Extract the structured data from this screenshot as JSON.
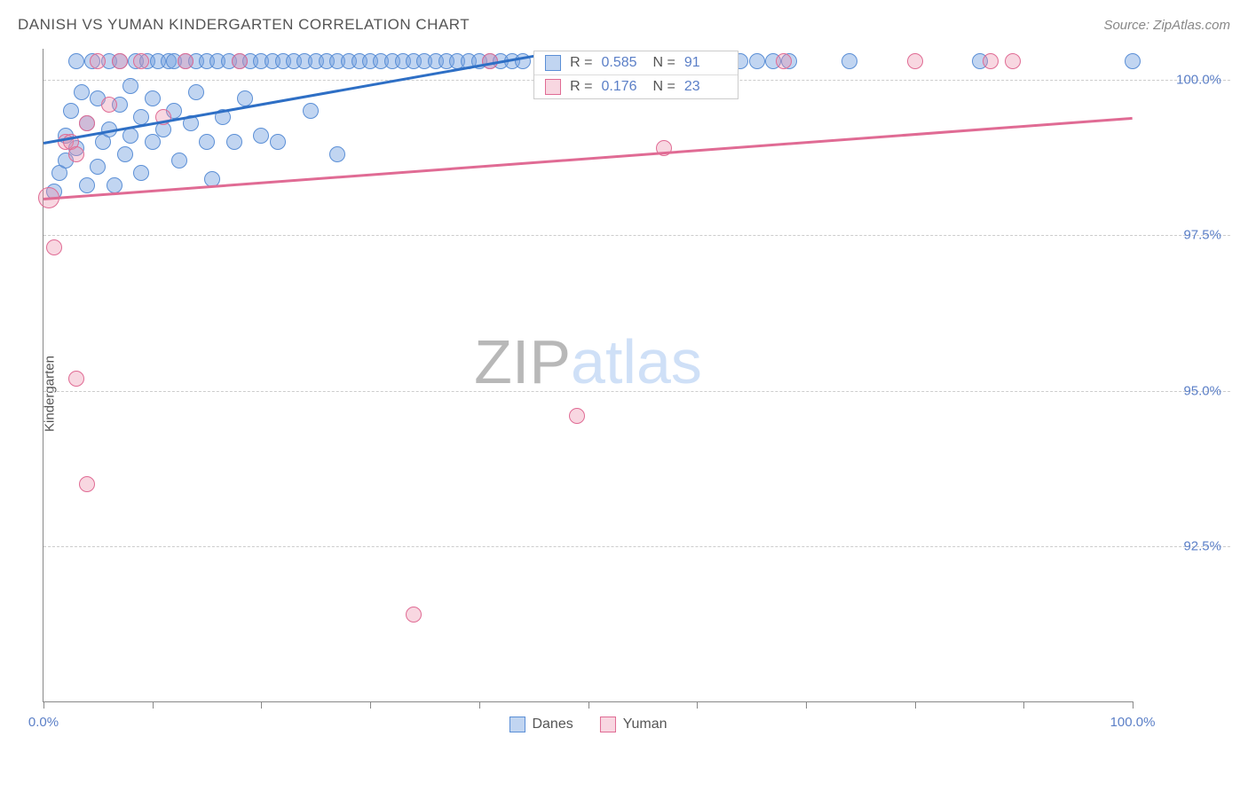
{
  "header": {
    "title": "DANISH VS YUMAN KINDERGARTEN CORRELATION CHART",
    "source": "Source: ZipAtlas.com"
  },
  "chart": {
    "type": "scatter",
    "y_axis_label": "Kindergarten",
    "background_color": "#ffffff",
    "grid_color": "#cccccc",
    "axis_color": "#888888",
    "tick_label_color": "#5b7fc7",
    "xlim": [
      0,
      100
    ],
    "ylim": [
      90,
      100.5
    ],
    "x_ticks": [
      0,
      10,
      20,
      30,
      40,
      50,
      60,
      70,
      80,
      90,
      100
    ],
    "x_tick_labels": {
      "0": "0.0%",
      "100": "100.0%"
    },
    "y_grid": [
      {
        "value": 92.5,
        "label": "92.5%"
      },
      {
        "value": 95.0,
        "label": "95.0%"
      },
      {
        "value": 97.5,
        "label": "97.5%"
      },
      {
        "value": 100.0,
        "label": "100.0%"
      }
    ],
    "series": [
      {
        "name": "Danes",
        "fill_color": "rgba(118,161,224,0.45)",
        "stroke_color": "#5b8fd6",
        "line_color": "#2e6fc5",
        "marker_size": 18,
        "R": "0.585",
        "N": "91",
        "trend": {
          "x1": 0,
          "y1": 99.0,
          "x2": 45,
          "y2": 100.4
        },
        "points": [
          {
            "x": 1,
            "y": 98.2
          },
          {
            "x": 1.5,
            "y": 98.5
          },
          {
            "x": 2,
            "y": 99.1
          },
          {
            "x": 2,
            "y": 98.7
          },
          {
            "x": 2.5,
            "y": 99.5
          },
          {
            "x": 3,
            "y": 98.9
          },
          {
            "x": 3,
            "y": 100.3
          },
          {
            "x": 3.5,
            "y": 99.8
          },
          {
            "x": 4,
            "y": 99.3
          },
          {
            "x": 4,
            "y": 98.3
          },
          {
            "x": 4.5,
            "y": 100.3
          },
          {
            "x": 5,
            "y": 99.7
          },
          {
            "x": 5,
            "y": 98.6
          },
          {
            "x": 5.5,
            "y": 99.0
          },
          {
            "x": 6,
            "y": 100.3
          },
          {
            "x": 6,
            "y": 99.2
          },
          {
            "x": 6.5,
            "y": 98.3
          },
          {
            "x": 7,
            "y": 99.6
          },
          {
            "x": 7,
            "y": 100.3
          },
          {
            "x": 7.5,
            "y": 98.8
          },
          {
            "x": 8,
            "y": 99.9
          },
          {
            "x": 8,
            "y": 99.1
          },
          {
            "x": 8.5,
            "y": 100.3
          },
          {
            "x": 9,
            "y": 98.5
          },
          {
            "x": 9,
            "y": 99.4
          },
          {
            "x": 9.5,
            "y": 100.3
          },
          {
            "x": 10,
            "y": 99.7
          },
          {
            "x": 10,
            "y": 99.0
          },
          {
            "x": 10.5,
            "y": 100.3
          },
          {
            "x": 11,
            "y": 99.2
          },
          {
            "x": 11.5,
            "y": 100.3
          },
          {
            "x": 12,
            "y": 99.5
          },
          {
            "x": 12,
            "y": 100.3
          },
          {
            "x": 12.5,
            "y": 98.7
          },
          {
            "x": 13,
            "y": 100.3
          },
          {
            "x": 13.5,
            "y": 99.3
          },
          {
            "x": 14,
            "y": 100.3
          },
          {
            "x": 14,
            "y": 99.8
          },
          {
            "x": 15,
            "y": 100.3
          },
          {
            "x": 15,
            "y": 99.0
          },
          {
            "x": 15.5,
            "y": 98.4
          },
          {
            "x": 16,
            "y": 100.3
          },
          {
            "x": 16.5,
            "y": 99.4
          },
          {
            "x": 17,
            "y": 100.3
          },
          {
            "x": 17.5,
            "y": 99.0
          },
          {
            "x": 18,
            "y": 100.3
          },
          {
            "x": 18.5,
            "y": 99.7
          },
          {
            "x": 19,
            "y": 100.3
          },
          {
            "x": 20,
            "y": 100.3
          },
          {
            "x": 20,
            "y": 99.1
          },
          {
            "x": 21,
            "y": 100.3
          },
          {
            "x": 21.5,
            "y": 99.0
          },
          {
            "x": 22,
            "y": 100.3
          },
          {
            "x": 23,
            "y": 100.3
          },
          {
            "x": 24,
            "y": 100.3
          },
          {
            "x": 24.5,
            "y": 99.5
          },
          {
            "x": 25,
            "y": 100.3
          },
          {
            "x": 26,
            "y": 100.3
          },
          {
            "x": 27,
            "y": 100.3
          },
          {
            "x": 27,
            "y": 98.8
          },
          {
            "x": 28,
            "y": 100.3
          },
          {
            "x": 29,
            "y": 100.3
          },
          {
            "x": 30,
            "y": 100.3
          },
          {
            "x": 31,
            "y": 100.3
          },
          {
            "x": 32,
            "y": 100.3
          },
          {
            "x": 33,
            "y": 100.3
          },
          {
            "x": 34,
            "y": 100.3
          },
          {
            "x": 35,
            "y": 100.3
          },
          {
            "x": 36,
            "y": 100.3
          },
          {
            "x": 37,
            "y": 100.3
          },
          {
            "x": 38,
            "y": 100.3
          },
          {
            "x": 39,
            "y": 100.3
          },
          {
            "x": 40,
            "y": 100.3
          },
          {
            "x": 41,
            "y": 100.3
          },
          {
            "x": 42,
            "y": 100.3
          },
          {
            "x": 43,
            "y": 100.3
          },
          {
            "x": 44,
            "y": 100.3
          },
          {
            "x": 46,
            "y": 100.3
          },
          {
            "x": 48,
            "y": 100.3
          },
          {
            "x": 50,
            "y": 100.3
          },
          {
            "x": 52,
            "y": 100.3
          },
          {
            "x": 54,
            "y": 100.3
          },
          {
            "x": 57,
            "y": 100.3
          },
          {
            "x": 60,
            "y": 100.3
          },
          {
            "x": 64,
            "y": 100.3
          },
          {
            "x": 65.5,
            "y": 100.3
          },
          {
            "x": 67,
            "y": 100.3
          },
          {
            "x": 68.5,
            "y": 100.3
          },
          {
            "x": 74,
            "y": 100.3
          },
          {
            "x": 86,
            "y": 100.3
          },
          {
            "x": 100,
            "y": 100.3
          }
        ]
      },
      {
        "name": "Yuman",
        "fill_color": "rgba(235,140,170,0.35)",
        "stroke_color": "#e06b94",
        "line_color": "#e06b94",
        "marker_size": 18,
        "R": "0.176",
        "N": "23",
        "trend": {
          "x1": 0,
          "y1": 98.1,
          "x2": 100,
          "y2": 99.4
        },
        "points": [
          {
            "x": 0.5,
            "y": 98.1,
            "size": 24
          },
          {
            "x": 1,
            "y": 97.3
          },
          {
            "x": 2,
            "y": 99.0
          },
          {
            "x": 2.5,
            "y": 99.0
          },
          {
            "x": 3,
            "y": 95.2
          },
          {
            "x": 3,
            "y": 98.8
          },
          {
            "x": 4,
            "y": 99.3
          },
          {
            "x": 4,
            "y": 93.5
          },
          {
            "x": 5,
            "y": 100.3
          },
          {
            "x": 6,
            "y": 99.6
          },
          {
            "x": 7,
            "y": 100.3
          },
          {
            "x": 9,
            "y": 100.3
          },
          {
            "x": 11,
            "y": 99.4
          },
          {
            "x": 13,
            "y": 100.3
          },
          {
            "x": 18,
            "y": 100.3
          },
          {
            "x": 34,
            "y": 91.4
          },
          {
            "x": 41,
            "y": 100.3
          },
          {
            "x": 49,
            "y": 94.6
          },
          {
            "x": 57,
            "y": 98.9
          },
          {
            "x": 68,
            "y": 100.3
          },
          {
            "x": 80,
            "y": 100.3
          },
          {
            "x": 87,
            "y": 100.3
          },
          {
            "x": 89,
            "y": 100.3
          }
        ]
      }
    ],
    "watermark": {
      "part1": "ZIP",
      "part2": "atlas"
    }
  },
  "bottom_legend": [
    {
      "label": "Danes",
      "fill": "rgba(118,161,224,0.45)",
      "stroke": "#5b8fd6"
    },
    {
      "label": "Yuman",
      "fill": "rgba(235,140,170,0.35)",
      "stroke": "#e06b94"
    }
  ]
}
